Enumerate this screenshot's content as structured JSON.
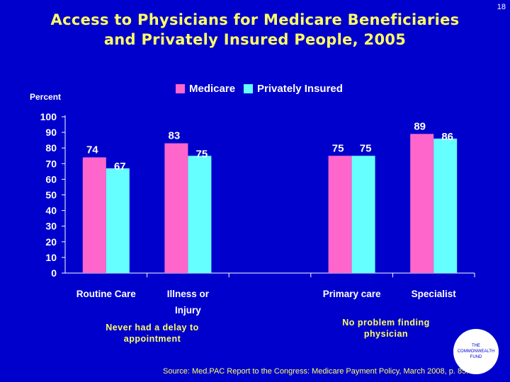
{
  "slide_number": "18",
  "title_line1": "Access to Physicians for Medicare Beneficiaries",
  "title_line2": "and Privately Insured People, 2005",
  "y_axis_label": "Percent",
  "legend": [
    {
      "label": "Medicare",
      "color": "#FF66CC"
    },
    {
      "label": "Privately Insured",
      "color": "#66FFFF"
    }
  ],
  "group_labels": {
    "left": "Never had a delay to appointment",
    "right": "No problem finding physician"
  },
  "source": "Source: Med.PAC Report to the Congress: Medicare Payment Policy, March 2008, p. 85.",
  "logo_text": "THE COMMONWEALTH FUND",
  "chart_data": {
    "type": "bar",
    "title": "Access to Physicians for Medicare Beneficiaries and Privately Insured People, 2005",
    "ylabel": "Percent",
    "ylim": [
      0,
      100
    ],
    "yticks": [
      0,
      10,
      20,
      30,
      40,
      50,
      60,
      70,
      80,
      90,
      100
    ],
    "categories": [
      "Routine Care",
      "Illness or Injury",
      "Primary care",
      "Specialist"
    ],
    "category_groups": [
      "Never had a delay to appointment",
      "Never had a delay to appointment",
      "No problem finding physician",
      "No problem finding physician"
    ],
    "series": [
      {
        "name": "Medicare",
        "values": [
          74,
          83,
          75,
          89
        ],
        "color": "#FF66CC"
      },
      {
        "name": "Privately Insured",
        "values": [
          67,
          75,
          75,
          86
        ],
        "color": "#66FFFF"
      }
    ],
    "value_label_color": "#FFFFFF",
    "category_label_color": "#FFFFFF"
  }
}
